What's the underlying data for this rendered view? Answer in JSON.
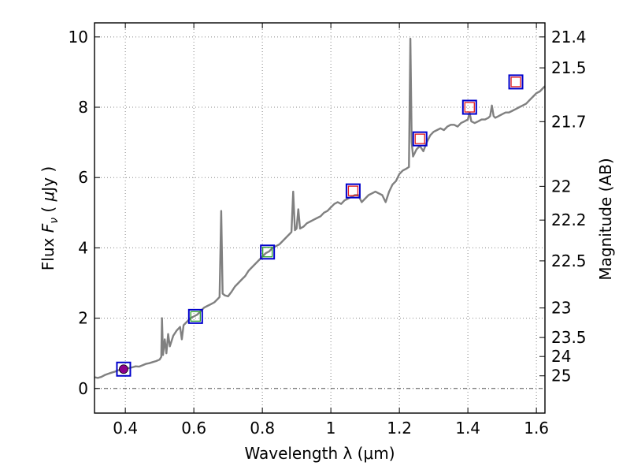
{
  "chart_data": {
    "type": "line",
    "title": "",
    "xlabel": "Wavelength  λ (μm)",
    "ylabel": "Flux  F_ν  ( μJy )",
    "ylabel_parts": {
      "pre": "Flux  ",
      "F": "F",
      "sub": "ν",
      "mid": "  ( ",
      "mu": "μ",
      "post": "Jy )"
    },
    "y2label": "Magnitude (AB)",
    "xlim": [
      0.31,
      1.625
    ],
    "ylim": [
      -0.7,
      10.4
    ],
    "grid": true,
    "x_ticks": [
      0.4,
      0.6,
      0.8,
      1.0,
      1.2,
      1.4,
      1.6
    ],
    "x_tick_labels": [
      "0.4",
      "0.6",
      "0.8",
      "1",
      "1.2",
      "1.4",
      "1.6"
    ],
    "y_ticks": [
      0,
      2,
      4,
      6,
      8,
      10
    ],
    "y_tick_labels": [
      "0",
      "2",
      "4",
      "6",
      "8",
      "10"
    ],
    "y2_ticks": [
      {
        "label": "21.4",
        "flux": 10.0
      },
      {
        "label": "21.5",
        "flux": 9.12
      },
      {
        "label": "21.7",
        "flux": 7.59
      },
      {
        "label": "22",
        "flux": 5.75
      },
      {
        "label": "22.2",
        "flux": 4.79
      },
      {
        "label": "22.5",
        "flux": 3.63
      },
      {
        "label": "23",
        "flux": 2.29
      },
      {
        "label": "23.5",
        "flux": 1.45
      },
      {
        "label": "24",
        "flux": 0.91
      },
      {
        "label": "25",
        "flux": 0.36
      }
    ],
    "series": [
      {
        "name": "spectrum",
        "color": "#808080",
        "points": [
          [
            0.31,
            0.32
          ],
          [
            0.32,
            0.3
          ],
          [
            0.33,
            0.33
          ],
          [
            0.34,
            0.38
          ],
          [
            0.35,
            0.42
          ],
          [
            0.36,
            0.45
          ],
          [
            0.37,
            0.48
          ],
          [
            0.38,
            0.52
          ],
          [
            0.39,
            0.55
          ],
          [
            0.4,
            0.57
          ],
          [
            0.41,
            0.58
          ],
          [
            0.42,
            0.6
          ],
          [
            0.43,
            0.63
          ],
          [
            0.44,
            0.62
          ],
          [
            0.45,
            0.66
          ],
          [
            0.46,
            0.7
          ],
          [
            0.47,
            0.72
          ],
          [
            0.48,
            0.75
          ],
          [
            0.49,
            0.78
          ],
          [
            0.5,
            0.82
          ],
          [
            0.505,
            0.9
          ],
          [
            0.507,
            2.0
          ],
          [
            0.51,
            0.95
          ],
          [
            0.515,
            1.4
          ],
          [
            0.52,
            1.0
          ],
          [
            0.525,
            1.55
          ],
          [
            0.53,
            1.2
          ],
          [
            0.54,
            1.5
          ],
          [
            0.55,
            1.65
          ],
          [
            0.56,
            1.75
          ],
          [
            0.565,
            1.4
          ],
          [
            0.57,
            1.8
          ],
          [
            0.58,
            1.9
          ],
          [
            0.59,
            2.0
          ],
          [
            0.6,
            2.05
          ],
          [
            0.61,
            2.1
          ],
          [
            0.62,
            2.2
          ],
          [
            0.63,
            2.3
          ],
          [
            0.64,
            2.35
          ],
          [
            0.65,
            2.4
          ],
          [
            0.66,
            2.45
          ],
          [
            0.67,
            2.55
          ],
          [
            0.675,
            2.6
          ],
          [
            0.68,
            5.05
          ],
          [
            0.684,
            2.7
          ],
          [
            0.69,
            2.65
          ],
          [
            0.7,
            2.62
          ],
          [
            0.71,
            2.75
          ],
          [
            0.72,
            2.9
          ],
          [
            0.73,
            3.0
          ],
          [
            0.74,
            3.1
          ],
          [
            0.75,
            3.2
          ],
          [
            0.76,
            3.35
          ],
          [
            0.77,
            3.45
          ],
          [
            0.78,
            3.55
          ],
          [
            0.79,
            3.65
          ],
          [
            0.8,
            3.75
          ],
          [
            0.81,
            3.85
          ],
          [
            0.82,
            3.9
          ],
          [
            0.83,
            4.0
          ],
          [
            0.84,
            4.05
          ],
          [
            0.85,
            4.1
          ],
          [
            0.86,
            4.2
          ],
          [
            0.87,
            4.3
          ],
          [
            0.88,
            4.4
          ],
          [
            0.885,
            4.45
          ],
          [
            0.89,
            5.6
          ],
          [
            0.895,
            4.5
          ],
          [
            0.9,
            4.55
          ],
          [
            0.905,
            5.1
          ],
          [
            0.91,
            4.55
          ],
          [
            0.92,
            4.6
          ],
          [
            0.93,
            4.7
          ],
          [
            0.94,
            4.75
          ],
          [
            0.95,
            4.8
          ],
          [
            0.96,
            4.85
          ],
          [
            0.97,
            4.9
          ],
          [
            0.98,
            5.0
          ],
          [
            0.99,
            5.05
          ],
          [
            1.0,
            5.15
          ],
          [
            1.01,
            5.25
          ],
          [
            1.02,
            5.3
          ],
          [
            1.03,
            5.25
          ],
          [
            1.04,
            5.35
          ],
          [
            1.05,
            5.4
          ],
          [
            1.06,
            5.45
          ],
          [
            1.07,
            5.5
          ],
          [
            1.08,
            5.5
          ],
          [
            1.09,
            5.3
          ],
          [
            1.1,
            5.4
          ],
          [
            1.11,
            5.5
          ],
          [
            1.12,
            5.55
          ],
          [
            1.13,
            5.6
          ],
          [
            1.14,
            5.55
          ],
          [
            1.15,
            5.5
          ],
          [
            1.16,
            5.3
          ],
          [
            1.17,
            5.6
          ],
          [
            1.18,
            5.8
          ],
          [
            1.19,
            5.9
          ],
          [
            1.2,
            6.1
          ],
          [
            1.21,
            6.2
          ],
          [
            1.22,
            6.25
          ],
          [
            1.228,
            6.3
          ],
          [
            1.232,
            9.95
          ],
          [
            1.236,
            7.0
          ],
          [
            1.24,
            6.6
          ],
          [
            1.25,
            6.8
          ],
          [
            1.26,
            6.9
          ],
          [
            1.27,
            6.75
          ],
          [
            1.28,
            7.0
          ],
          [
            1.29,
            7.2
          ],
          [
            1.3,
            7.3
          ],
          [
            1.31,
            7.35
          ],
          [
            1.32,
            7.4
          ],
          [
            1.33,
            7.35
          ],
          [
            1.34,
            7.45
          ],
          [
            1.35,
            7.5
          ],
          [
            1.36,
            7.5
          ],
          [
            1.37,
            7.45
          ],
          [
            1.38,
            7.55
          ],
          [
            1.39,
            7.6
          ],
          [
            1.4,
            7.65
          ],
          [
            1.405,
            7.85
          ],
          [
            1.41,
            7.6
          ],
          [
            1.42,
            7.55
          ],
          [
            1.43,
            7.6
          ],
          [
            1.44,
            7.65
          ],
          [
            1.45,
            7.65
          ],
          [
            1.46,
            7.7
          ],
          [
            1.465,
            7.75
          ],
          [
            1.47,
            8.05
          ],
          [
            1.475,
            7.75
          ],
          [
            1.48,
            7.7
          ],
          [
            1.49,
            7.75
          ],
          [
            1.5,
            7.8
          ],
          [
            1.51,
            7.85
          ],
          [
            1.52,
            7.85
          ],
          [
            1.53,
            7.9
          ],
          [
            1.54,
            7.95
          ],
          [
            1.55,
            8.0
          ],
          [
            1.56,
            8.05
          ],
          [
            1.57,
            8.1
          ],
          [
            1.58,
            8.2
          ],
          [
            1.59,
            8.3
          ],
          [
            1.6,
            8.4
          ],
          [
            1.61,
            8.45
          ],
          [
            1.62,
            8.55
          ],
          [
            1.625,
            8.6
          ]
        ]
      }
    ],
    "photometry": [
      {
        "x": 0.395,
        "y": 0.55,
        "inner": "#8B008B",
        "inner_shape": "circle"
      },
      {
        "x": 0.605,
        "y": 2.05,
        "inner": "#2ca02c",
        "inner_shape": "square"
      },
      {
        "x": 0.815,
        "y": 3.88,
        "inner": "#2ca02c",
        "inner_shape": "square"
      },
      {
        "x": 1.065,
        "y": 5.62,
        "inner": "#e31a1c",
        "inner_shape": "square"
      },
      {
        "x": 1.26,
        "y": 7.1,
        "inner": "#e31a1c",
        "inner_shape": "square"
      },
      {
        "x": 1.405,
        "y": 8.0,
        "inner": "#e31a1c",
        "inner_shape": "square"
      },
      {
        "x": 1.54,
        "y": 8.72,
        "inner": "#e31a1c",
        "inner_shape": "square"
      }
    ],
    "zero_line": 0,
    "colors": {
      "axis": "#000000",
      "grid": "#888888",
      "box": "#0000cc"
    }
  }
}
